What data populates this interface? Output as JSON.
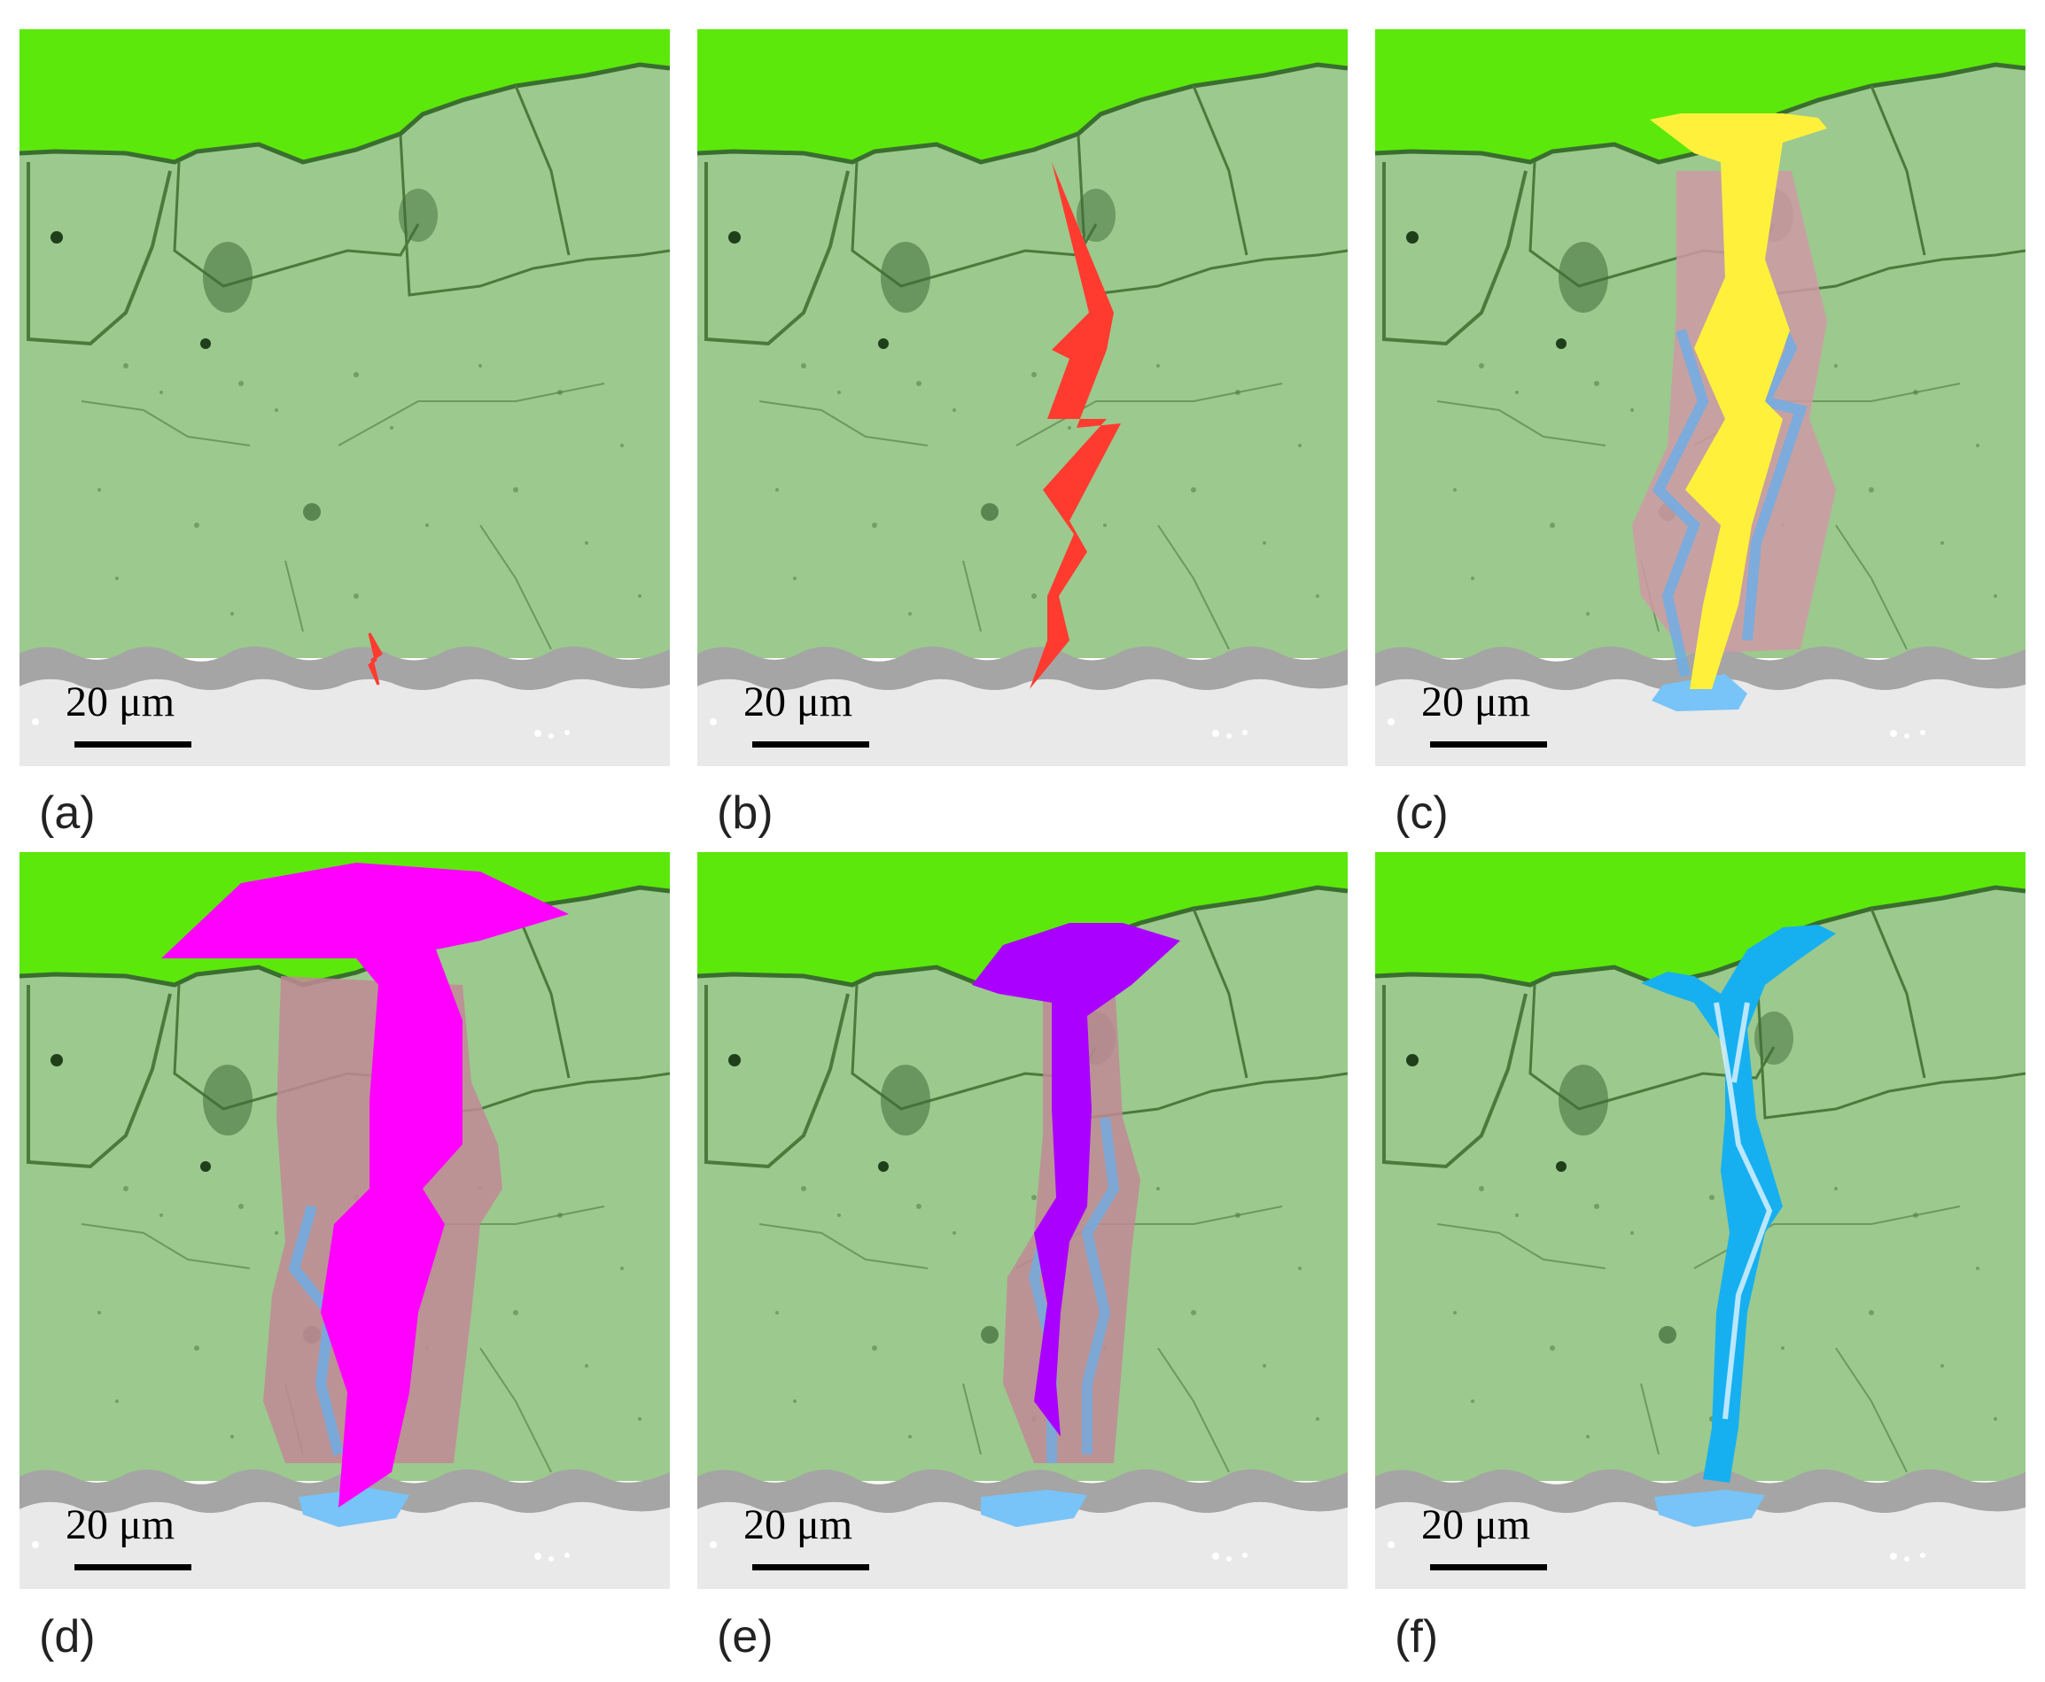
{
  "figure": {
    "panels": [
      {
        "id": "a",
        "label": "(a)",
        "scale_bar": "20 μm",
        "overlay": "crack-initiation"
      },
      {
        "id": "b",
        "label": "(b)",
        "scale_bar": "20 μm",
        "overlay": "through-crack"
      },
      {
        "id": "c",
        "label": "(c)",
        "scale_bar": "20 μm",
        "overlay": "crack-yellow-widened"
      },
      {
        "id": "d",
        "label": "(d)",
        "scale_bar": "20 μm",
        "overlay": "crack-magenta-wide"
      },
      {
        "id": "e",
        "label": "(e)",
        "scale_bar": "20 μm",
        "overlay": "crack-purple"
      },
      {
        "id": "f",
        "label": "(f)",
        "scale_bar": "20 μm",
        "overlay": "crack-cyan-thin"
      }
    ]
  },
  "colors": {
    "top_region": "#5ce80b",
    "coating": "#9cc98e",
    "interface": "#a5a5a5",
    "substrate": "#e9e9e9",
    "crack_red": "#ff3b2f",
    "crack_yellow": "#fff13b",
    "crack_magenta": "#ff00ff",
    "crack_purple": "#aa00ff",
    "halo_pink": "#cf9aa4",
    "edge_blue": "#6aaeea",
    "pool_blue": "#78c3f7",
    "cyan": "#16b0f0"
  }
}
